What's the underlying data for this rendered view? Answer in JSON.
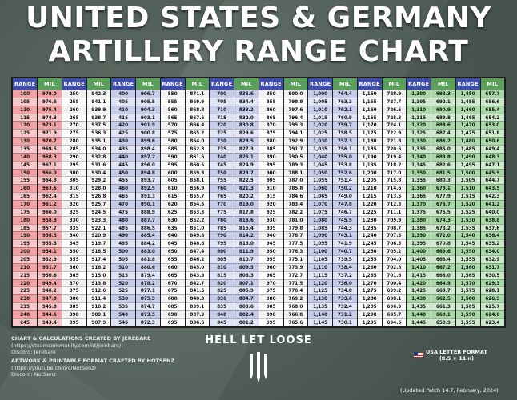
{
  "title_line1": "UNITED STATES & GERMANY",
  "title_line2": "ARTILLERY RANGE CHART",
  "header_range": "RANGE",
  "header_mil": "MIL",
  "colors": {
    "range_header": "#3d4da8",
    "mil_header": "#5aa05a",
    "row_red": "#f0a2a4",
    "row_red_alt": "#f6c8c9",
    "row_blue": "#c6cdea",
    "row_blue_alt": "#e0e4f4",
    "row_green": "#a7d8a6",
    "row_green_alt": "#cfe9cf",
    "row_white": "#f2f2f2",
    "row_white_alt": "#ffffff"
  },
  "column_pairs": [
    {
      "theme": "red",
      "range": [
        "100",
        "105",
        "110",
        "115",
        "120",
        "125",
        "130",
        "135",
        "140",
        "145",
        "150",
        "155",
        "160",
        "165",
        "170",
        "175",
        "180",
        "185",
        "190",
        "195",
        "200",
        "205",
        "210",
        "215",
        "220",
        "225",
        "230",
        "235",
        "240",
        "245"
      ],
      "mil": [
        "978.0",
        "976.6",
        "975.4",
        "974.3",
        "973.1",
        "971.9",
        "970.7",
        "969.5",
        "968.3",
        "967.1",
        "966.0",
        "964.8",
        "963.6",
        "962.4",
        "961.2",
        "960.0",
        "958.9",
        "957.7",
        "956.5",
        "955.3",
        "954.1",
        "952.9",
        "951.7",
        "950.6",
        "949.4",
        "948.2",
        "947.0",
        "945.8",
        "944.6",
        "943.4"
      ]
    },
    {
      "theme": "white",
      "range": [
        "250",
        "255",
        "260",
        "265",
        "270",
        "275",
        "280",
        "285",
        "290",
        "295",
        "300",
        "305",
        "310",
        "315",
        "320",
        "325",
        "330",
        "335",
        "340",
        "345",
        "350",
        "355",
        "360",
        "365",
        "370",
        "375",
        "380",
        "385",
        "390",
        "395"
      ],
      "mil": [
        "942.3",
        "941.1",
        "939.9",
        "938.7",
        "937.5",
        "936.3",
        "935.1",
        "934.0",
        "932.8",
        "931.6",
        "930.4",
        "929.2",
        "928.0",
        "926.8",
        "925.7",
        "924.5",
        "923.3",
        "922.1",
        "920.9",
        "919.7",
        "918.5",
        "917.4",
        "916.2",
        "915.0",
        "913.8",
        "912.6",
        "911.4",
        "910.2",
        "909.1",
        "907.9"
      ]
    },
    {
      "theme": "blue",
      "range": [
        "400",
        "405",
        "410",
        "415",
        "420",
        "425",
        "430",
        "435",
        "440",
        "445",
        "450",
        "455",
        "460",
        "465",
        "470",
        "475",
        "480",
        "485",
        "490",
        "495",
        "500",
        "505",
        "510",
        "515",
        "520",
        "525",
        "530",
        "535",
        "540",
        "545"
      ],
      "mil": [
        "906.7",
        "905.5",
        "904.3",
        "903.1",
        "901.9",
        "900.8",
        "899.6",
        "898.4",
        "897.2",
        "896.0",
        "894.8",
        "893.7",
        "892.5",
        "891.3",
        "890.1",
        "888.9",
        "887.7",
        "886.5",
        "885.4",
        "884.2",
        "883.0",
        "881.8",
        "880.6",
        "879.4",
        "878.2",
        "877.1",
        "875.9",
        "874.7",
        "873.5",
        "872.3"
      ]
    },
    {
      "theme": "white",
      "range": [
        "550",
        "555",
        "560",
        "565",
        "570",
        "575",
        "580",
        "585",
        "590",
        "595",
        "600",
        "605",
        "610",
        "615",
        "620",
        "625",
        "630",
        "635",
        "640",
        "645",
        "650",
        "655",
        "660",
        "665",
        "670",
        "675",
        "680",
        "685",
        "690",
        "695"
      ],
      "mil": [
        "871.1",
        "869.9",
        "868.8",
        "867.6",
        "866.4",
        "865.2",
        "864.0",
        "862.8",
        "861.6",
        "860.5",
        "859.3",
        "858.1",
        "856.9",
        "855.7",
        "854.5",
        "853.3",
        "852.2",
        "851.0",
        "849.8",
        "848.6",
        "847.4",
        "846.2",
        "845.0",
        "843.9",
        "842.7",
        "841.5",
        "840.3",
        "839.1",
        "837.9",
        "836.6"
      ]
    },
    {
      "theme": "blue",
      "range": [
        "700",
        "705",
        "710",
        "715",
        "720",
        "725",
        "730",
        "735",
        "740",
        "745",
        "750",
        "755",
        "760",
        "765",
        "770",
        "775",
        "780",
        "785",
        "790",
        "795",
        "800",
        "805",
        "810",
        "815",
        "820",
        "825",
        "830",
        "835",
        "840",
        "845"
      ],
      "mil": [
        "835.6",
        "834.4",
        "833.2",
        "832.0",
        "830.8",
        "829.6",
        "828.5",
        "827.3",
        "826.1",
        "824.9",
        "823.7",
        "822.5",
        "821.3",
        "820.2",
        "819.0",
        "817.8",
        "816.6",
        "815.4",
        "814.2",
        "813.0",
        "811.9",
        "810.7",
        "809.5",
        "808.3",
        "807.1",
        "805.9",
        "804.7",
        "803.6",
        "802.4",
        "801.2"
      ]
    },
    {
      "theme": "white",
      "range": [
        "850",
        "855",
        "860",
        "865",
        "870",
        "875",
        "880",
        "885",
        "890",
        "895",
        "900",
        "905",
        "910",
        "915",
        "920",
        "925",
        "930",
        "935",
        "940",
        "945",
        "950",
        "955",
        "960",
        "965",
        "970",
        "975",
        "980",
        "985",
        "990",
        "995"
      ],
      "mil": [
        "800.0",
        "798.8",
        "797.6",
        "796.4",
        "795.3",
        "794.1",
        "792.9",
        "791.7",
        "790.5",
        "789.3",
        "788.1",
        "787.0",
        "785.8",
        "784.6",
        "783.4",
        "782.2",
        "781.0",
        "779.8",
        "778.7",
        "777.5",
        "776.3",
        "775.1",
        "773.9",
        "772.7",
        "771.5",
        "770.4",
        "769.2",
        "768.0",
        "766.8",
        "765.6"
      ]
    },
    {
      "theme": "blue",
      "range": [
        "1,000",
        "1,005",
        "1,010",
        "1,015",
        "1,020",
        "1,025",
        "1,030",
        "1,035",
        "1,040",
        "1,045",
        "1,050",
        "1,055",
        "1,060",
        "1,065",
        "1,070",
        "1,075",
        "1,080",
        "1,085",
        "1,090",
        "1,095",
        "1,100",
        "1,105",
        "1,110",
        "1,115",
        "1,120",
        "1,125",
        "1,130",
        "1,135",
        "1,140",
        "1,145"
      ],
      "mil": [
        "764.4",
        "763.3",
        "762.1",
        "760.9",
        "759.7",
        "758.5",
        "757.3",
        "756.1",
        "755.0",
        "753.8",
        "752.6",
        "751.4",
        "750.2",
        "749.0",
        "747.8",
        "746.7",
        "745.5",
        "744.3",
        "743.1",
        "741.9",
        "740.7",
        "739.5",
        "738.4",
        "737.2",
        "736.0",
        "734.8",
        "733.6",
        "732.4",
        "731.2",
        "730.1"
      ]
    },
    {
      "theme": "white",
      "range": [
        "1,150",
        "1,155",
        "1,160",
        "1,165",
        "1,170",
        "1,175",
        "1,180",
        "1,185",
        "1,190",
        "1,195",
        "1,200",
        "1,205",
        "1,210",
        "1,215",
        "1,220",
        "1,225",
        "1,230",
        "1,235",
        "1,240",
        "1,245",
        "1,250",
        "1,255",
        "1,260",
        "1,265",
        "1,270",
        "1,275",
        "1,280",
        "1,285",
        "1,290",
        "1,295"
      ],
      "mil": [
        "728.9",
        "727.7",
        "726.5",
        "725.3",
        "724.1",
        "722.9",
        "721.8",
        "720.6",
        "719.4",
        "718.2",
        "717.0",
        "715.8",
        "714.6",
        "713.5",
        "712.3",
        "711.1",
        "709.9",
        "708.7",
        "707.5",
        "706.3",
        "705.2",
        "704.0",
        "702.8",
        "701.6",
        "700.4",
        "699.2",
        "698.1",
        "696.9",
        "695.7",
        "694.5"
      ]
    },
    {
      "theme": "green",
      "range": [
        "1,300",
        "1,305",
        "1,310",
        "1,315",
        "1,320",
        "1,325",
        "1,330",
        "1,335",
        "1,340",
        "1,345",
        "1,350",
        "1,355",
        "1,360",
        "1,365",
        "1,370",
        "1,375",
        "1,380",
        "1,385",
        "1,390",
        "1,395",
        "1,400",
        "1,405",
        "1,410",
        "1,415",
        "1,420",
        "1,425",
        "1,430",
        "1,435",
        "1,440",
        "1,445"
      ],
      "mil": [
        "693.3",
        "692.1",
        "690.9",
        "689.8",
        "688.6",
        "687.4",
        "686.2",
        "685.0",
        "683.8",
        "682.6",
        "681.5",
        "680.3",
        "679.1",
        "677.9",
        "676.7",
        "675.5",
        "674.3",
        "673.2",
        "672.0",
        "670.8",
        "669.6",
        "668.4",
        "667.2",
        "666.0",
        "664.9",
        "663.7",
        "662.5",
        "661.3",
        "660.1",
        "658.9"
      ]
    },
    {
      "theme": "green",
      "range": [
        "1,450",
        "1,455",
        "1,460",
        "1,465",
        "1,470",
        "1,475",
        "1,480",
        "1,485",
        "1,490",
        "1,495",
        "1,500",
        "1,505",
        "1,510",
        "1,515",
        "1,520",
        "1,525",
        "1,530",
        "1,535",
        "1,540",
        "1,545",
        "1,550",
        "1,555",
        "1,560",
        "1,565",
        "1,570",
        "1,575",
        "1,580",
        "1,585",
        "1,590",
        "1,595"
      ],
      "mil": [
        "657.7",
        "656.6",
        "655.4",
        "654.2",
        "653.0",
        "651.8",
        "650.6",
        "649.4",
        "648.3",
        "647.1",
        "645.9",
        "644.7",
        "643.5",
        "642.3",
        "641.2",
        "640.0",
        "638.8",
        "637.6",
        "636.4",
        "635.2",
        "634.0",
        "632.9",
        "631.7",
        "630.5",
        "629.3",
        "628.1",
        "626.9",
        "625.7",
        "624.6",
        "623.4"
      ]
    }
  ],
  "footer_left": {
    "line1": "CHART & CALCULATIONS CREATED BY JEREBARE",
    "line2": "(https://steamcommunity.com/id/jerebare/)",
    "line3": "Discord: Jerebare",
    "line4": "ARTWORK & PRINTABLE FORMAT CRAFTED BY HOTSENZ",
    "line5": "(https://youtube.com/c/NotSenz)",
    "line6": "Discord: NotSenz"
  },
  "logo_text": "HELL LET LOOSE",
  "usa_line1": "USA LETTER FORMAT",
  "usa_line2": "(8.5 × 11in)",
  "patch_note": "(Updated Patch 14.7, February, 2024)"
}
